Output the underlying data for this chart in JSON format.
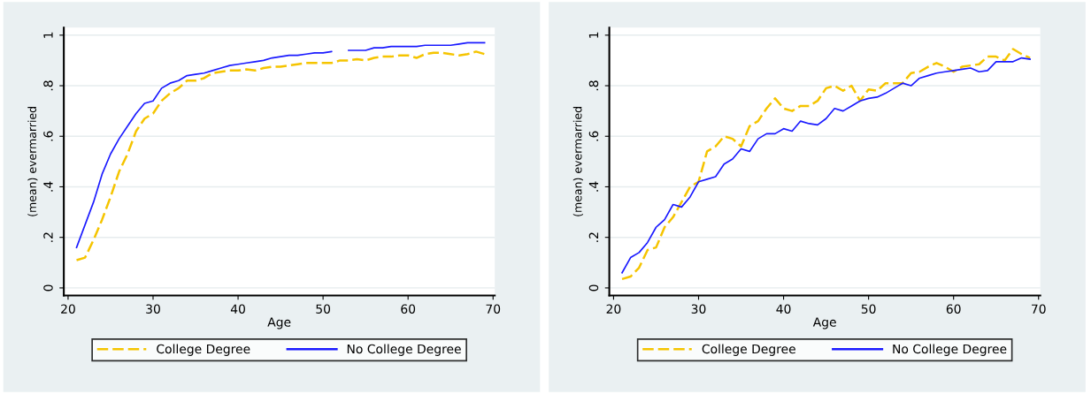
{
  "chart_data": [
    {
      "type": "line",
      "xlabel": "Age",
      "ylabel": "(mean) evermarried",
      "xlim": [
        19.5,
        70.2
      ],
      "ylim": [
        -0.03,
        1.03
      ],
      "xticks": [
        20,
        30,
        40,
        50,
        60,
        70
      ],
      "yticks": [
        0,
        {
          "value": 0.2,
          "label": ".2"
        },
        {
          "value": 0.4,
          "label": ".4"
        },
        {
          "value": 0.6,
          "label": ".6"
        },
        {
          "value": 0.8,
          "label": ".8"
        },
        1
      ],
      "grid": "y",
      "legend": "bottom",
      "x": [
        21,
        22,
        23,
        24,
        25,
        26,
        27,
        28,
        29,
        30,
        31,
        32,
        33,
        34,
        35,
        36,
        37,
        38,
        39,
        40,
        41,
        42,
        43,
        44,
        45,
        46,
        47,
        48,
        49,
        50,
        51,
        52,
        53,
        54,
        55,
        56,
        57,
        58,
        59,
        60,
        61,
        62,
        63,
        64,
        65,
        66,
        67,
        68,
        69
      ],
      "series": [
        {
          "name": "College Degree",
          "color": "#f5c400",
          "line_style": "dashed",
          "values": [
            0.11,
            0.12,
            0.19,
            0.27,
            0.36,
            0.46,
            0.53,
            0.62,
            0.67,
            0.69,
            0.74,
            0.77,
            0.79,
            0.82,
            0.82,
            0.83,
            0.85,
            0.855,
            0.86,
            0.86,
            0.865,
            0.86,
            0.87,
            0.875,
            0.875,
            0.88,
            0.885,
            0.89,
            0.89,
            0.89,
            0.89,
            0.9,
            0.9,
            0.905,
            0.9,
            0.91,
            0.915,
            0.915,
            0.92,
            0.92,
            0.91,
            0.925,
            0.93,
            0.93,
            0.925,
            0.92,
            0.925,
            0.935,
            0.925
          ]
        },
        {
          "name": "No College Degree",
          "color": "#1a1aff",
          "line_style": "solid",
          "values": [
            0.16,
            0.25,
            0.34,
            0.45,
            0.53,
            0.59,
            0.64,
            0.69,
            0.73,
            0.74,
            0.79,
            0.81,
            0.82,
            0.84,
            0.845,
            0.85,
            0.86,
            0.87,
            0.88,
            0.885,
            0.89,
            0.895,
            0.9,
            0.91,
            0.915,
            0.92,
            0.92,
            0.925,
            0.93,
            0.93,
            0.935,
            null,
            0.94,
            0.94,
            0.94,
            0.95,
            0.95,
            0.955,
            0.955,
            0.955,
            0.955,
            0.96,
            0.96,
            0.96,
            0.96,
            0.965,
            0.97,
            0.97,
            0.97
          ]
        }
      ]
    },
    {
      "type": "line",
      "xlabel": "Age",
      "ylabel": "(mean) evermarried",
      "xlim": [
        19.5,
        70.2
      ],
      "ylim": [
        -0.03,
        1.03
      ],
      "xticks": [
        20,
        30,
        40,
        50,
        60,
        70
      ],
      "yticks": [
        0,
        {
          "value": 0.2,
          "label": ".2"
        },
        {
          "value": 0.4,
          "label": ".4"
        },
        {
          "value": 0.6,
          "label": ".6"
        },
        {
          "value": 0.8,
          "label": ".8"
        },
        1
      ],
      "grid": "y",
      "legend": "bottom",
      "x": [
        21,
        22,
        23,
        24,
        25,
        26,
        27,
        28,
        29,
        30,
        31,
        32,
        33,
        34,
        35,
        36,
        37,
        38,
        39,
        40,
        41,
        42,
        43,
        44,
        45,
        46,
        47,
        48,
        49,
        50,
        51,
        52,
        53,
        54,
        55,
        56,
        57,
        58,
        59,
        60,
        61,
        62,
        63,
        64,
        65,
        66,
        67,
        68,
        69
      ],
      "series": [
        {
          "name": "College Degree",
          "color": "#f5c400",
          "line_style": "dashed",
          "values": [
            0.035,
            0.045,
            0.08,
            0.15,
            0.16,
            0.24,
            0.28,
            0.34,
            0.4,
            0.42,
            0.54,
            0.56,
            0.6,
            0.59,
            0.56,
            0.64,
            0.66,
            0.71,
            0.75,
            0.71,
            0.7,
            0.72,
            0.72,
            0.74,
            0.79,
            0.8,
            0.78,
            0.8,
            0.74,
            0.785,
            0.78,
            0.81,
            0.81,
            0.81,
            0.85,
            0.855,
            0.875,
            0.89,
            0.875,
            0.855,
            0.875,
            0.88,
            0.885,
            0.915,
            0.915,
            0.9,
            0.945,
            0.925,
            0.91
          ]
        },
        {
          "name": "No College Degree",
          "color": "#1a1aff",
          "line_style": "solid",
          "values": [
            0.06,
            0.12,
            0.14,
            0.18,
            0.24,
            0.27,
            0.33,
            0.32,
            0.36,
            0.42,
            0.43,
            0.44,
            0.49,
            0.51,
            0.55,
            0.54,
            0.59,
            0.61,
            0.61,
            0.63,
            0.62,
            0.66,
            0.65,
            0.645,
            0.67,
            0.71,
            0.7,
            0.72,
            0.74,
            0.75,
            0.755,
            0.77,
            0.79,
            0.81,
            0.8,
            0.83,
            0.84,
            0.85,
            0.855,
            0.86,
            0.865,
            0.87,
            0.855,
            0.86,
            0.895,
            0.895,
            0.895,
            0.91,
            0.905
          ]
        }
      ]
    }
  ]
}
